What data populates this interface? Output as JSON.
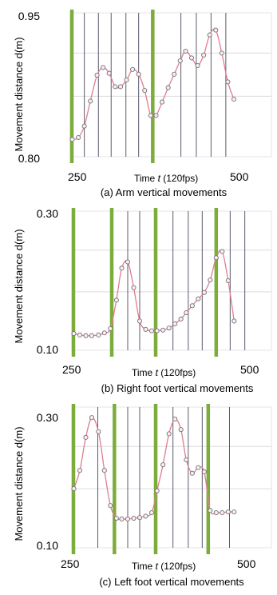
{
  "chart_data": [
    {
      "type": "line",
      "caption": "(a) Arm vertical movements",
      "ylabel": "Movement  distance  d(m)",
      "xlabel_prefix": "Time ",
      "xlabel_var": "t",
      "xlabel_suffix": " (120fps)",
      "ylim": [
        0.8,
        0.95
      ],
      "xlim": [
        250,
        550
      ],
      "y_ticks": [
        "0.95",
        "0.80"
      ],
      "x_ticks": [
        "250",
        "500"
      ],
      "phase_lines": [
        250,
        373
      ],
      "frame_lines": [
        271,
        292,
        311,
        333,
        352,
        415,
        438,
        460,
        482
      ],
      "points": [
        [
          253,
          0.818
        ],
        [
          262,
          0.82
        ],
        [
          271,
          0.832
        ],
        [
          280,
          0.858
        ],
        [
          290,
          0.885
        ],
        [
          299,
          0.893
        ],
        [
          308,
          0.887
        ],
        [
          317,
          0.873
        ],
        [
          325,
          0.873
        ],
        [
          334,
          0.88
        ],
        [
          343,
          0.891
        ],
        [
          352,
          0.886
        ],
        [
          361,
          0.869
        ],
        [
          370,
          0.843
        ],
        [
          378,
          0.843
        ],
        [
          387,
          0.857
        ],
        [
          396,
          0.872
        ],
        [
          405,
          0.886
        ],
        [
          414,
          0.9
        ],
        [
          422,
          0.91
        ],
        [
          431,
          0.903
        ],
        [
          440,
          0.895
        ],
        [
          449,
          0.906
        ],
        [
          458,
          0.927
        ],
        [
          467,
          0.932
        ],
        [
          476,
          0.908
        ],
        [
          485,
          0.878
        ],
        [
          494,
          0.86
        ]
      ],
      "line_color": "#e07d8f",
      "phase_color": "#7cad3c",
      "frame_color": "#5b5b6e"
    },
    {
      "type": "line",
      "caption": "(b) Right  foot vertical movements",
      "ylabel": "Movement  distance  d(m)",
      "xlabel_prefix": "Time ",
      "xlabel_var": "t",
      "xlabel_suffix": " (120fps)",
      "ylim": [
        0.1,
        0.3
      ],
      "xlim": [
        250,
        550
      ],
      "y_ticks": [
        "0.30",
        "0.10"
      ],
      "x_ticks": [
        "250",
        "500"
      ],
      "phase_lines": [
        250,
        310,
        376,
        467
      ],
      "frame_lines": [
        334,
        352,
        402,
        425,
        446,
        488,
        510
      ],
      "points": [
        [
          253,
          0.124
        ],
        [
          262,
          0.122
        ],
        [
          271,
          0.121
        ],
        [
          280,
          0.121
        ],
        [
          290,
          0.122
        ],
        [
          299,
          0.125
        ],
        [
          308,
          0.131
        ],
        [
          317,
          0.172
        ],
        [
          325,
          0.218
        ],
        [
          334,
          0.227
        ],
        [
          343,
          0.19
        ],
        [
          352,
          0.142
        ],
        [
          361,
          0.13
        ],
        [
          370,
          0.128
        ],
        [
          378,
          0.128
        ],
        [
          387,
          0.129
        ],
        [
          396,
          0.132
        ],
        [
          405,
          0.138
        ],
        [
          414,
          0.145
        ],
        [
          422,
          0.154
        ],
        [
          431,
          0.164
        ],
        [
          440,
          0.174
        ],
        [
          449,
          0.183
        ],
        [
          458,
          0.201
        ],
        [
          467,
          0.233
        ],
        [
          476,
          0.242
        ],
        [
          485,
          0.2
        ],
        [
          494,
          0.142
        ]
      ],
      "line_color": "#e07d8f",
      "phase_color": "#7cad3c",
      "frame_color": "#5b5b6e"
    },
    {
      "type": "line",
      "caption": "(c) Left foot vertical movements",
      "ylabel": "Movement  distance  d(m)",
      "xlabel_prefix": "Time ",
      "xlabel_var": "t",
      "xlabel_suffix": " (120fps)",
      "ylim": [
        0.1,
        0.3
      ],
      "xlim": [
        250,
        550
      ],
      "y_ticks": [
        "0.30",
        "0.10"
      ],
      "x_ticks": [
        "250",
        "500"
      ],
      "phase_lines": [
        250,
        314,
        376,
        455
      ],
      "frame_lines": [
        289,
        334,
        352,
        402,
        425,
        446,
        487
      ],
      "points": [
        [
          253,
          0.184
        ],
        [
          262,
          0.21
        ],
        [
          271,
          0.257
        ],
        [
          280,
          0.285
        ],
        [
          290,
          0.265
        ],
        [
          299,
          0.21
        ],
        [
          308,
          0.16
        ],
        [
          317,
          0.142
        ],
        [
          325,
          0.141
        ],
        [
          334,
          0.141
        ],
        [
          343,
          0.142
        ],
        [
          352,
          0.143
        ],
        [
          361,
          0.145
        ],
        [
          370,
          0.15
        ],
        [
          378,
          0.181
        ],
        [
          387,
          0.218
        ],
        [
          396,
          0.262
        ],
        [
          405,
          0.283
        ],
        [
          414,
          0.268
        ],
        [
          422,
          0.225
        ],
        [
          431,
          0.206
        ],
        [
          440,
          0.214
        ],
        [
          449,
          0.208
        ],
        [
          458,
          0.153
        ],
        [
          467,
          0.15
        ],
        [
          476,
          0.15
        ],
        [
          485,
          0.151
        ],
        [
          494,
          0.151
        ]
      ],
      "line_color": "#e07d8f",
      "phase_color": "#7cad3c",
      "frame_color": "#5b5b6e"
    }
  ]
}
